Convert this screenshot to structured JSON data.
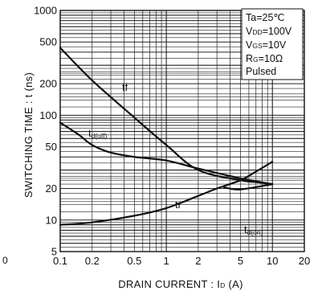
{
  "chart_data": {
    "type": "line",
    "ylabel": "SWITCHING TIME : t  (ns)",
    "xlabel": "DRAIN CURRENT : I",
    "xlabel_sub": "D",
    "xlabel_unit": "  (A)",
    "x_scale": "log",
    "y_scale": "log",
    "xlim": [
      0.1,
      20
    ],
    "ylim": [
      5,
      1000
    ],
    "grid": true,
    "x_ticks": [
      {
        "v": 0.1,
        "label": "0.1"
      },
      {
        "v": 0.2,
        "label": "0.2"
      },
      {
        "v": 0.5,
        "label": "0.5"
      },
      {
        "v": 1,
        "label": "1"
      },
      {
        "v": 2,
        "label": "2"
      },
      {
        "v": 5,
        "label": "5"
      },
      {
        "v": 10,
        "label": "10"
      },
      {
        "v": 20,
        "label": "20"
      }
    ],
    "y_ticks": [
      {
        "v": 5,
        "label": "5"
      },
      {
        "v": 10,
        "label": "10"
      },
      {
        "v": 20,
        "label": "20"
      },
      {
        "v": 50,
        "label": "50"
      },
      {
        "v": 100,
        "label": "100"
      },
      {
        "v": 200,
        "label": "200"
      },
      {
        "v": 500,
        "label": "500"
      },
      {
        "v": 1000,
        "label": "1000"
      }
    ],
    "conditions": {
      "ta": {
        "main": "Ta=25℃"
      },
      "vdd": {
        "main": "V",
        "sub": "DD",
        "rest": "=100V"
      },
      "vgs": {
        "main": "V",
        "sub": "GS",
        "rest": "=10V"
      },
      "rg": {
        "main": "R",
        "sub": "G",
        "rest": "=10Ω"
      },
      "mode": {
        "main": "Pulsed"
      }
    },
    "series": [
      {
        "name": "tf",
        "x": [
          0.1,
          0.2,
          0.5,
          1,
          2,
          5,
          7,
          10
        ],
        "y": [
          440,
          215,
          95,
          52,
          30,
          24,
          23,
          22
        ]
      },
      {
        "name": "t",
        "name_sub": "d(off)",
        "x": [
          0.1,
          0.15,
          0.2,
          0.3,
          0.5,
          1,
          2,
          5,
          10
        ],
        "y": [
          85,
          65,
          52,
          44,
          40,
          37,
          31,
          25,
          22
        ]
      },
      {
        "name": "tr",
        "x": [
          0.1,
          0.2,
          0.5,
          1,
          2,
          3,
          5,
          7,
          10
        ],
        "y": [
          9,
          9.5,
          11,
          13,
          17,
          20,
          24,
          29,
          36
        ]
      },
      {
        "name": "t",
        "name_sub": "d(on)",
        "x": [
          3.5,
          5,
          10
        ],
        "y": [
          20.5,
          19.6,
          22
        ]
      }
    ]
  },
  "stray_text": "0"
}
